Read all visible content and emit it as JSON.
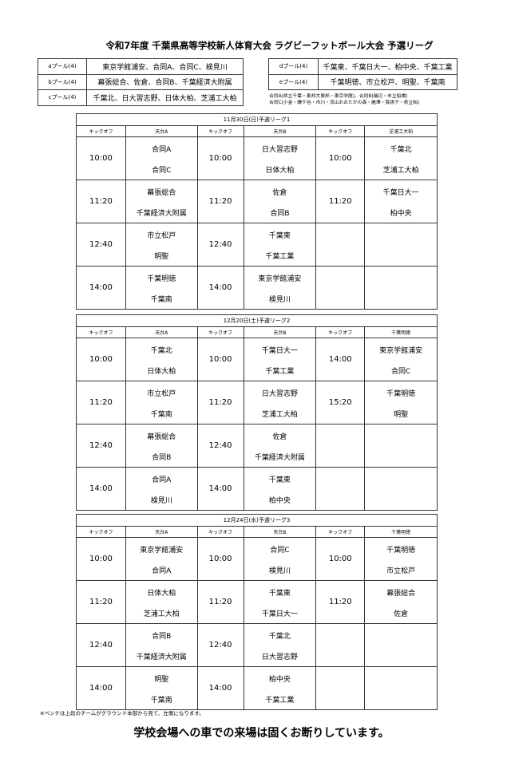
{
  "title": "令和7年度 千葉県高等学校新人体育大会 ラグビーフットボール大会 予選リーグ",
  "pools_left": [
    {
      "name": "aプール(4)",
      "teams": "東京学館浦安、合同A、合同C、検見川"
    },
    {
      "name": "bプール(4)",
      "teams": "幕張総合、佐倉、合同B、千葉経済大附属"
    },
    {
      "name": "cプール(4)",
      "teams": "千葉北、日大習志野、日体大柏、芝浦工大柏"
    }
  ],
  "pools_right": [
    {
      "name": "dプール(4)",
      "teams": "千葉東、千葉日大一、柏中央、千葉工業"
    },
    {
      "name": "eプール(4)",
      "teams": "千葉明徳、市立松戸、明聖、千葉南"
    }
  ],
  "notes": [
    "合同A(県立千葉・東邦大東邦・東京学館)、合同B(磯辺・市立船橋)",
    "合同C(小金・鎌ケ谷・市川・流山おおたかの森・麗澤・我孫子・県立柏)"
  ],
  "schedules": [
    {
      "header": "11月30日(日)予選リーグ1",
      "cols": [
        "キックオフ",
        "天台A",
        "キックオフ",
        "天台B",
        "キックオフ",
        "芝浦工大柏"
      ],
      "rows": [
        [
          "10:00",
          "合同A",
          "合同C",
          "10:00",
          "日大習志野",
          "日体大柏",
          "10:00",
          "千葉北",
          "芝浦工大柏"
        ],
        [
          "11:20",
          "幕張総合",
          "千葉経済大附属",
          "11:20",
          "佐倉",
          "合同B",
          "11:20",
          "千葉日大一",
          "柏中央"
        ],
        [
          "12:40",
          "市立松戸",
          "明聖",
          "12:40",
          "千葉東",
          "千葉工業",
          "",
          "",
          ""
        ],
        [
          "14:00",
          "千葉明徳",
          "千葉南",
          "14:00",
          "東京学館浦安",
          "検見川",
          "",
          "",
          ""
        ]
      ]
    },
    {
      "header": "12月20日(土)予選リーグ2",
      "cols": [
        "キックオフ",
        "天台A",
        "キックオフ",
        "天台B",
        "キックオフ",
        "千葉明徳"
      ],
      "rows": [
        [
          "10:00",
          "千葉北",
          "日体大柏",
          "10:00",
          "千葉日大一",
          "千葉工業",
          "14:00",
          "東京学館浦安",
          "合同C"
        ],
        [
          "11:20",
          "市立松戸",
          "千葉南",
          "11:20",
          "日大習志野",
          "芝浦工大柏",
          "15:20",
          "千葉明徳",
          "明聖"
        ],
        [
          "12:40",
          "幕張総合",
          "合同B",
          "12:40",
          "佐倉",
          "千葉経済大附属",
          "",
          "",
          ""
        ],
        [
          "14:00",
          "合同A",
          "検見川",
          "14:00",
          "千葉東",
          "柏中央",
          "",
          "",
          ""
        ]
      ]
    },
    {
      "header": "12月24日(水)予選リーグ3",
      "cols": [
        "キックオフ",
        "天台A",
        "キックオフ",
        "天台B",
        "キックオフ",
        "千葉明徳"
      ],
      "rows": [
        [
          "10:00",
          "東京学館浦安",
          "合同A",
          "10:00",
          "合同C",
          "検見川",
          "10:00",
          "千葉明徳",
          "市立松戸"
        ],
        [
          "11:20",
          "日体大柏",
          "芝浦工大柏",
          "11:20",
          "千葉東",
          "千葉日大一",
          "11:20",
          "幕張総合",
          "佐倉"
        ],
        [
          "12:40",
          "合同B",
          "千葉経済大附属",
          "12:40",
          "千葉北",
          "日大習志野",
          "",
          "",
          ""
        ],
        [
          "14:00",
          "明聖",
          "千葉南",
          "14:00",
          "柏中央",
          "千葉工業",
          "",
          "",
          ""
        ]
      ]
    }
  ],
  "footnote": "※ベンチは上段のチームがグラウンド本部から見て、左側になります。",
  "notice": "学校会場への車での来場は固くお断りしています。"
}
